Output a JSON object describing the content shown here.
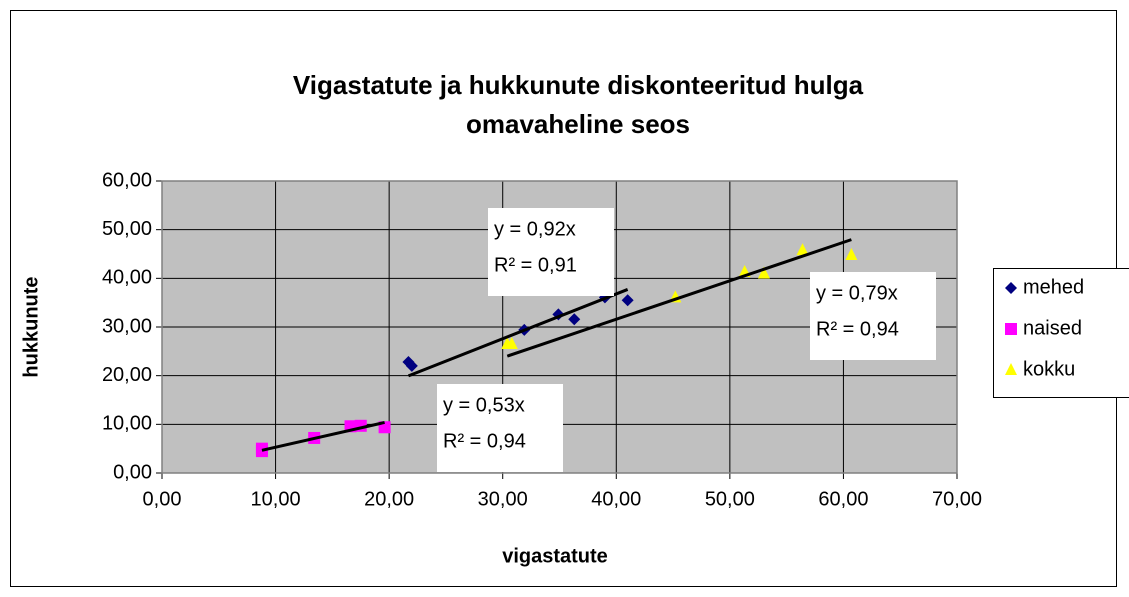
{
  "chart_data": {
    "type": "scatter",
    "title": [
      "Vigastatute ja  hukkunute diskonteeritud hulga",
      "omavaheline seos"
    ],
    "x_label": "vigastatute",
    "y_label": "hukkunute",
    "xlim": [
      0,
      70
    ],
    "xticks": [
      {
        "value": 0,
        "label": "0,00"
      },
      {
        "value": 10,
        "label": "10,00"
      },
      {
        "value": 20,
        "label": "20,00"
      },
      {
        "value": 30,
        "label": "30,00"
      },
      {
        "value": 40,
        "label": "40,00"
      },
      {
        "value": 50,
        "label": "50,00"
      },
      {
        "value": 60,
        "label": "60,00"
      },
      {
        "value": 70,
        "label": "70,00"
      }
    ],
    "ylim": [
      0,
      60
    ],
    "yticks": [
      {
        "value": 0,
        "label": "0,00"
      },
      {
        "value": 10,
        "label": "10,00"
      },
      {
        "value": 20,
        "label": "20,00"
      },
      {
        "value": 30,
        "label": "30,00"
      },
      {
        "value": 40,
        "label": "40,00"
      },
      {
        "value": 50,
        "label": "50,00"
      },
      {
        "value": 60,
        "label": "60,00"
      }
    ],
    "grid": true,
    "legend": "right",
    "series": [
      {
        "name": "mehed",
        "color": "#000080",
        "marker": "diamond",
        "x": [
          21.7,
          22.0,
          31.9,
          34.9,
          36.3,
          39.0,
          41.0
        ],
        "values": [
          22.8,
          22.0,
          29.4,
          32.6,
          31.6,
          36.1,
          35.5
        ],
        "trendline": {
          "slope": 0.92,
          "label": "y = 0,92x",
          "r2_label": "R² = 0,91"
        }
      },
      {
        "name": "naised",
        "color": "#ff00ff",
        "marker": "square",
        "x": [
          8.8,
          8.8,
          13.4,
          16.6,
          17.5,
          19.6
        ],
        "values": [
          4.5,
          5.0,
          7.2,
          9.6,
          9.7,
          9.4
        ],
        "trendline": {
          "slope": 0.53,
          "label": "y = 0,53x",
          "r2_label": "R² = 0,94"
        }
      },
      {
        "name": "kokku",
        "color": "#ffff00",
        "marker": "triangle",
        "x": [
          30.4,
          30.8,
          45.2,
          51.3,
          53.0,
          56.4,
          60.7
        ],
        "values": [
          26.5,
          26.5,
          36.1,
          41.3,
          41.0,
          45.8,
          44.8
        ],
        "trendline": {
          "slope": 0.79,
          "label": "y = 0,79x",
          "r2_label": "R² = 0,94"
        }
      }
    ]
  }
}
